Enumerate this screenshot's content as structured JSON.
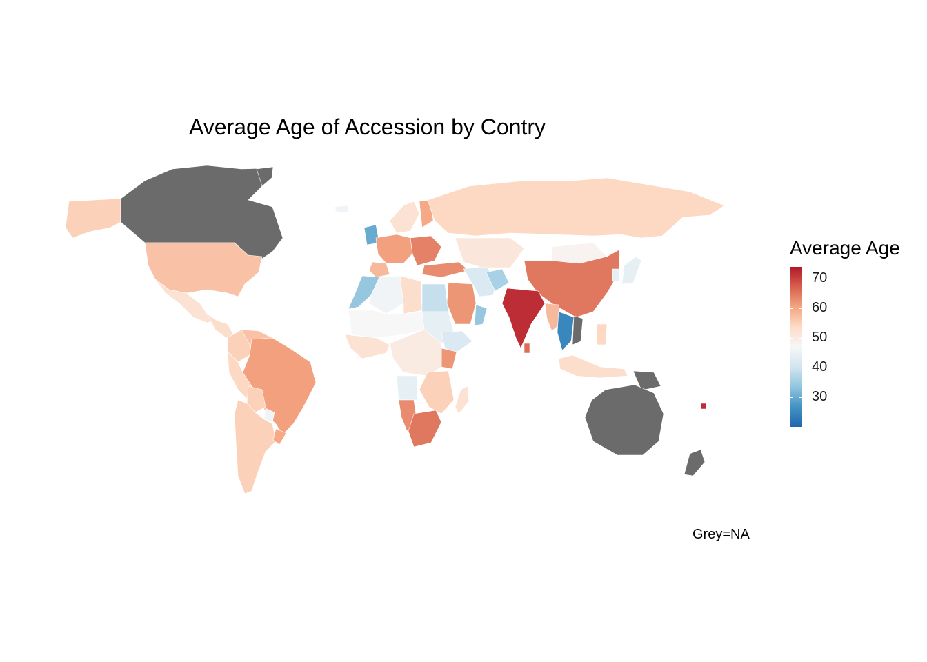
{
  "title": "Average Age of Accession by Contry",
  "legend": {
    "title": "Average Age",
    "ticks": [
      "70",
      "60",
      "50",
      "40",
      "30"
    ],
    "tick_values": [
      70,
      60,
      50,
      40,
      30
    ],
    "range": [
      20,
      74
    ],
    "palette": [
      "#B2182B",
      "#D6604D",
      "#F4A582",
      "#FDDBC7",
      "#F7F7F7",
      "#D1E5F0",
      "#92C5DE",
      "#4393C3",
      "#2166AC"
    ],
    "na_color": "#6B6B6B"
  },
  "caption": "Grey=NA",
  "regions": [
    {
      "name": "Alaska / USA",
      "value": 55
    },
    {
      "name": "Canada",
      "value": null
    },
    {
      "name": "Greenland",
      "value": null
    },
    {
      "name": "United States",
      "value": 57
    },
    {
      "name": "Mexico",
      "value": 52
    },
    {
      "name": "Central America",
      "value": 53
    },
    {
      "name": "Colombia",
      "value": 55
    },
    {
      "name": "Venezuela",
      "value": 57
    },
    {
      "name": "Peru",
      "value": 54
    },
    {
      "name": "Brazil",
      "value": 61
    },
    {
      "name": "Bolivia",
      "value": 55
    },
    {
      "name": "Paraguay",
      "value": 46
    },
    {
      "name": "Argentina / Chile",
      "value": 55
    },
    {
      "name": "Uruguay",
      "value": 60
    },
    {
      "name": "Iceland",
      "value": 46
    },
    {
      "name": "United Kingdom",
      "value": 30
    },
    {
      "name": "Scandinavia",
      "value": 52
    },
    {
      "name": "Finland",
      "value": 60
    },
    {
      "name": "Western Europe",
      "value": 61
    },
    {
      "name": "Central Europe",
      "value": 64
    },
    {
      "name": "Iberia",
      "value": 58
    },
    {
      "name": "Russia",
      "value": 54
    },
    {
      "name": "Turkey",
      "value": 63
    },
    {
      "name": "Morocco",
      "value": 34
    },
    {
      "name": "Algeria",
      "value": 46
    },
    {
      "name": "Libya",
      "value": 53
    },
    {
      "name": "Egypt",
      "value": 39
    },
    {
      "name": "Sahel",
      "value": 47
    },
    {
      "name": "West Africa",
      "value": 52
    },
    {
      "name": "Sudan",
      "value": 44
    },
    {
      "name": "Ethiopia",
      "value": 42
    },
    {
      "name": "Kenya",
      "value": 62
    },
    {
      "name": "Central Africa",
      "value": 50
    },
    {
      "name": "Angola",
      "value": 44
    },
    {
      "name": "Tanzania / Mozambique",
      "value": 55
    },
    {
      "name": "Namibia",
      "value": 63
    },
    {
      "name": "South Africa",
      "value": 65
    },
    {
      "name": "Madagascar",
      "value": 52
    },
    {
      "name": "Saudi Arabia",
      "value": 62
    },
    {
      "name": "Oman",
      "value": 34
    },
    {
      "name": "Iran",
      "value": 42
    },
    {
      "name": "Afghanistan",
      "value": 36
    },
    {
      "name": "Kazakhstan / Central Asia",
      "value": 51
    },
    {
      "name": "Mongolia",
      "value": 48
    },
    {
      "name": "China",
      "value": 65
    },
    {
      "name": "India",
      "value": 72
    },
    {
      "name": "Sri Lanka",
      "value": 66
    },
    {
      "name": "Myanmar",
      "value": 58
    },
    {
      "name": "Thailand",
      "value": 25
    },
    {
      "name": "Vietnam",
      "value": null
    },
    {
      "name": "Japan",
      "value": 44
    },
    {
      "name": "Korea",
      "value": 44
    },
    {
      "name": "Indonesia",
      "value": 53
    },
    {
      "name": "Philippines",
      "value": 54
    },
    {
      "name": "Papua New Guinea",
      "value": null
    },
    {
      "name": "Australia",
      "value": null
    },
    {
      "name": "New Zealand",
      "value": null
    },
    {
      "name": "Fiji",
      "value": 72
    }
  ]
}
